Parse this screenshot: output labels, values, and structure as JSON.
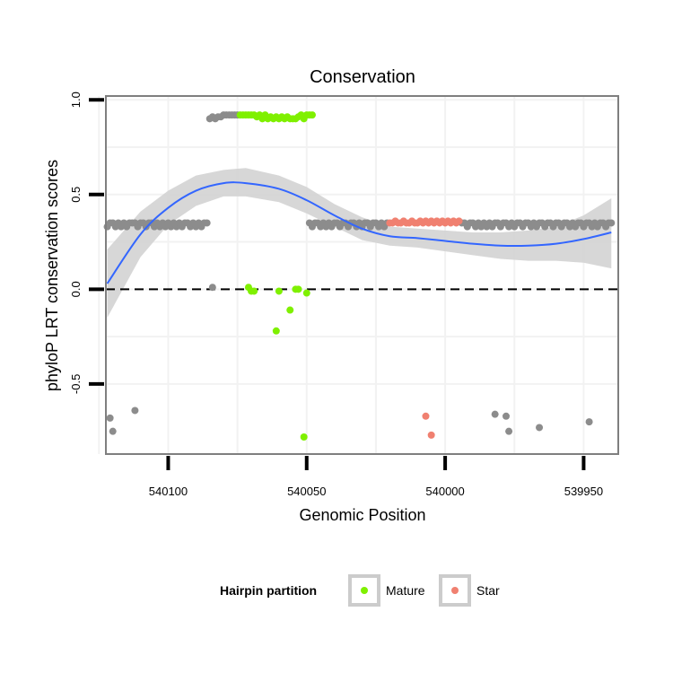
{
  "chart_data": {
    "type": "scatter",
    "title": "Conservation",
    "xlabel": "Genomic Position",
    "ylabel": "phyloP LRT conservation scores",
    "x_reversed": true,
    "xlim": [
      540122.5,
      539937.5
    ],
    "ylim": [
      -0.87,
      1.02
    ],
    "x_ticks": [
      540100,
      540050,
      540000,
      539950
    ],
    "x_tick_labels": [
      "540100",
      "540050",
      "540000",
      "539950"
    ],
    "y_ticks": [
      -0.5,
      0.0,
      0.5,
      1.0
    ],
    "y_tick_labels": [
      "-0.5",
      "0.0",
      "0.5",
      "1.0"
    ],
    "reference_line": {
      "y": 0,
      "style": "dashed"
    },
    "colors": {
      "Other": "#8c8c8c",
      "Mature": "#7ff000",
      "Star": "#f08070",
      "smooth": "#3366ff",
      "ribbon": "#d3d3d3",
      "panel_border": "#7f7f7f",
      "grid": "#f2f2f2"
    },
    "legend": {
      "title": "Hairpin partition",
      "entries": [
        "Mature",
        "Star"
      ],
      "position": "bottom"
    },
    "series": [
      {
        "name": "Other",
        "points": [
          [
            540122,
            0.33
          ],
          [
            540121,
            0.35
          ],
          [
            540120,
            0.35
          ],
          [
            540119,
            0.33
          ],
          [
            540118,
            0.35
          ],
          [
            540117,
            0.33
          ],
          [
            540116,
            0.35
          ],
          [
            540115,
            0.33
          ],
          [
            540114,
            0.35
          ],
          [
            540113,
            0.35
          ],
          [
            540112,
            0.35
          ],
          [
            540111,
            0.33
          ],
          [
            540110,
            0.35
          ],
          [
            540109,
            0.35
          ],
          [
            540108,
            0.33
          ],
          [
            540107,
            0.35
          ],
          [
            540106,
            0.35
          ],
          [
            540105,
            0.33
          ],
          [
            540104,
            0.35
          ],
          [
            540103,
            0.33
          ],
          [
            540102,
            0.35
          ],
          [
            540101,
            0.33
          ],
          [
            540100,
            0.35
          ],
          [
            540099,
            0.33
          ],
          [
            540098,
            0.35
          ],
          [
            540097,
            0.33
          ],
          [
            540096,
            0.35
          ],
          [
            540095,
            0.33
          ],
          [
            540094,
            0.35
          ],
          [
            540093,
            0.35
          ],
          [
            540092,
            0.33
          ],
          [
            540091,
            0.35
          ],
          [
            540090,
            0.33
          ],
          [
            540089,
            0.35
          ],
          [
            540088,
            0.33
          ],
          [
            540087,
            0.35
          ],
          [
            540086,
            0.35
          ],
          [
            540085,
            0.9
          ],
          [
            540084,
            0.91
          ],
          [
            540083,
            0.9
          ],
          [
            540082,
            0.91
          ],
          [
            540081,
            0.91
          ],
          [
            540080,
            0.92
          ],
          [
            540079,
            0.92
          ],
          [
            540078,
            0.92
          ],
          [
            540077,
            0.92
          ],
          [
            540076,
            0.92
          ],
          [
            540075,
            0.92
          ],
          [
            540084,
            0.01
          ],
          [
            540049,
            0.35
          ],
          [
            540048,
            0.33
          ],
          [
            540047,
            0.35
          ],
          [
            540046,
            0.35
          ],
          [
            540045,
            0.33
          ],
          [
            540044,
            0.35
          ],
          [
            540043,
            0.33
          ],
          [
            540042,
            0.35
          ],
          [
            540041,
            0.33
          ],
          [
            540040,
            0.35
          ],
          [
            540039,
            0.35
          ],
          [
            540038,
            0.33
          ],
          [
            540037,
            0.35
          ],
          [
            540036,
            0.35
          ],
          [
            540035,
            0.33
          ],
          [
            540034,
            0.35
          ],
          [
            540033,
            0.35
          ],
          [
            540032,
            0.33
          ],
          [
            540031,
            0.35
          ],
          [
            540030,
            0.33
          ],
          [
            540029,
            0.35
          ],
          [
            540028,
            0.35
          ],
          [
            540027,
            0.33
          ],
          [
            540026,
            0.35
          ],
          [
            540025,
            0.35
          ],
          [
            540024,
            0.33
          ],
          [
            540023,
            0.35
          ],
          [
            540022,
            0.33
          ],
          [
            540021,
            0.35
          ],
          [
            539994,
            0.35
          ],
          [
            539993,
            0.35
          ],
          [
            539992,
            0.33
          ],
          [
            539991,
            0.35
          ],
          [
            539990,
            0.35
          ],
          [
            539989,
            0.33
          ],
          [
            539988,
            0.35
          ],
          [
            539987,
            0.33
          ],
          [
            539986,
            0.35
          ],
          [
            539985,
            0.33
          ],
          [
            539984,
            0.35
          ],
          [
            539983,
            0.33
          ],
          [
            539982,
            0.35
          ],
          [
            539981,
            0.35
          ],
          [
            539980,
            0.33
          ],
          [
            539979,
            0.35
          ],
          [
            539978,
            0.35
          ],
          [
            539977,
            0.33
          ],
          [
            539976,
            0.35
          ],
          [
            539975,
            0.33
          ],
          [
            539974,
            0.35
          ],
          [
            539973,
            0.35
          ],
          [
            539972,
            0.33
          ],
          [
            539971,
            0.35
          ],
          [
            539970,
            0.35
          ],
          [
            539969,
            0.33
          ],
          [
            539968,
            0.35
          ],
          [
            539967,
            0.33
          ],
          [
            539966,
            0.35
          ],
          [
            539965,
            0.35
          ],
          [
            539964,
            0.33
          ],
          [
            539963,
            0.35
          ],
          [
            539962,
            0.35
          ],
          [
            539961,
            0.33
          ],
          [
            539960,
            0.35
          ],
          [
            539959,
            0.35
          ],
          [
            539958,
            0.33
          ],
          [
            539957,
            0.35
          ],
          [
            539956,
            0.35
          ],
          [
            539955,
            0.33
          ],
          [
            539954,
            0.35
          ],
          [
            539953,
            0.33
          ],
          [
            539952,
            0.35
          ],
          [
            539951,
            0.35
          ],
          [
            539950,
            0.33
          ],
          [
            539949,
            0.35
          ],
          [
            539948,
            0.35
          ],
          [
            539947,
            0.33
          ],
          [
            539946,
            0.35
          ],
          [
            539945,
            0.33
          ],
          [
            539944,
            0.35
          ],
          [
            539943,
            0.35
          ],
          [
            539942,
            0.33
          ],
          [
            539941,
            0.35
          ],
          [
            539940,
            0.35
          ],
          [
            540121,
            -0.68
          ],
          [
            540120,
            -0.75
          ],
          [
            540112,
            -0.64
          ],
          [
            539982,
            -0.66
          ],
          [
            539978,
            -0.67
          ],
          [
            539977,
            -0.75
          ],
          [
            539966,
            -0.73
          ],
          [
            539948,
            -0.7
          ]
        ]
      },
      {
        "name": "Mature",
        "points": [
          [
            540074,
            0.92
          ],
          [
            540073,
            0.92
          ],
          [
            540072,
            0.92
          ],
          [
            540071,
            0.92
          ],
          [
            540070,
            0.92
          ],
          [
            540069,
            0.92
          ],
          [
            540068,
            0.91
          ],
          [
            540067,
            0.92
          ],
          [
            540066,
            0.9
          ],
          [
            540065,
            0.92
          ],
          [
            540064,
            0.9
          ],
          [
            540063,
            0.91
          ],
          [
            540062,
            0.9
          ],
          [
            540061,
            0.91
          ],
          [
            540060,
            0.9
          ],
          [
            540059,
            0.91
          ],
          [
            540058,
            0.9
          ],
          [
            540057,
            0.91
          ],
          [
            540056,
            0.9
          ],
          [
            540055,
            0.9
          ],
          [
            540054,
            0.9
          ],
          [
            540053,
            0.91
          ],
          [
            540052,
            0.92
          ],
          [
            540051,
            0.9
          ],
          [
            540050,
            0.92
          ],
          [
            540049,
            0.92
          ],
          [
            540048,
            0.92
          ],
          [
            540071,
            0.01
          ],
          [
            540070,
            -0.01
          ],
          [
            540069,
            -0.01
          ],
          [
            540060,
            -0.01
          ],
          [
            540056,
            -0.11
          ],
          [
            540061,
            -0.22
          ],
          [
            540054,
            0.0
          ],
          [
            540053,
            0.0
          ],
          [
            540050,
            -0.02
          ],
          [
            540051,
            -0.78
          ]
        ]
      },
      {
        "name": "Star",
        "points": [
          [
            540020,
            0.35
          ],
          [
            540019,
            0.35
          ],
          [
            540018,
            0.36
          ],
          [
            540017,
            0.35
          ],
          [
            540016,
            0.35
          ],
          [
            540015,
            0.36
          ],
          [
            540014,
            0.35
          ],
          [
            540013,
            0.35
          ],
          [
            540012,
            0.36
          ],
          [
            540011,
            0.35
          ],
          [
            540010,
            0.35
          ],
          [
            540009,
            0.36
          ],
          [
            540008,
            0.35
          ],
          [
            540007,
            0.36
          ],
          [
            540006,
            0.35
          ],
          [
            540005,
            0.36
          ],
          [
            540004,
            0.35
          ],
          [
            540003,
            0.36
          ],
          [
            540002,
            0.35
          ],
          [
            540001,
            0.36
          ],
          [
            540000,
            0.35
          ],
          [
            539999,
            0.36
          ],
          [
            539998,
            0.35
          ],
          [
            539997,
            0.36
          ],
          [
            539996,
            0.35
          ],
          [
            539995,
            0.36
          ],
          [
            540007,
            -0.67
          ],
          [
            540005,
            -0.77
          ]
        ]
      }
    ],
    "smooth": {
      "x": [
        540122,
        540110,
        540100,
        540090,
        540080,
        540072,
        540060,
        540050,
        540040,
        540030,
        540020,
        540010,
        540000,
        539990,
        539980,
        539970,
        539960,
        539950,
        539940
      ],
      "y": [
        0.03,
        0.29,
        0.43,
        0.52,
        0.56,
        0.56,
        0.53,
        0.47,
        0.39,
        0.32,
        0.28,
        0.27,
        0.255,
        0.24,
        0.23,
        0.23,
        0.24,
        0.265,
        0.3
      ],
      "lo": [
        -0.15,
        0.17,
        0.34,
        0.44,
        0.49,
        0.49,
        0.46,
        0.4,
        0.33,
        0.26,
        0.23,
        0.22,
        0.2,
        0.18,
        0.16,
        0.15,
        0.15,
        0.14,
        0.11
      ],
      "hi": [
        0.21,
        0.41,
        0.52,
        0.6,
        0.63,
        0.64,
        0.6,
        0.54,
        0.45,
        0.38,
        0.33,
        0.32,
        0.31,
        0.3,
        0.3,
        0.31,
        0.33,
        0.39,
        0.48
      ]
    }
  }
}
